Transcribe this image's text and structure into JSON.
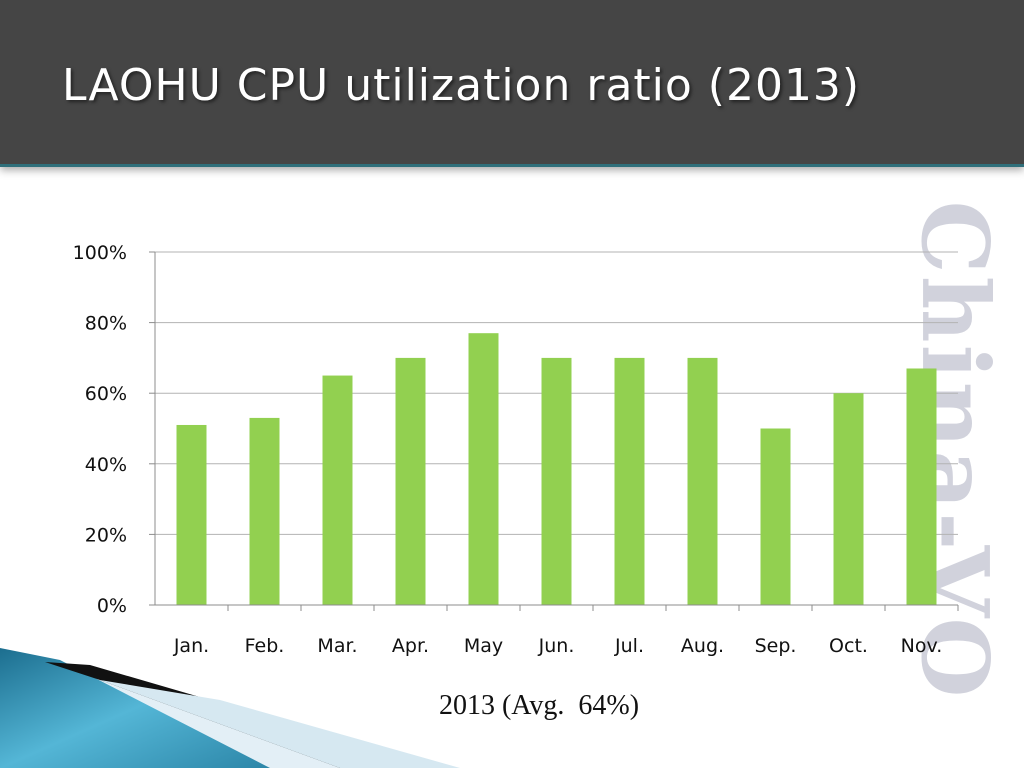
{
  "slide": {
    "title": "LAOHU CPU utilization ratio (2013)",
    "caption": "2013 (Avg.  64%)",
    "watermark": "China-VO"
  },
  "colors": {
    "header": "#454545",
    "bar": "#92d050",
    "gridline": "#b3b3b3",
    "accent_teal": "#2f6f7a"
  },
  "chart_data": {
    "type": "bar",
    "categories": [
      "Jan.",
      "Feb.",
      "Mar.",
      "Apr.",
      "May",
      "Jun.",
      "Jul.",
      "Aug.",
      "Sep.",
      "Oct.",
      "Nov."
    ],
    "values": [
      51,
      53,
      65,
      70,
      77,
      70,
      70,
      70,
      50,
      60,
      67
    ],
    "unit": "%",
    "ylim": [
      0,
      100
    ],
    "yticks": [
      0,
      20,
      40,
      60,
      80,
      100
    ],
    "ytick_labels": [
      "0%",
      "20%",
      "40%",
      "60%",
      "80%",
      "100%"
    ],
    "grid": true,
    "legend": "none"
  }
}
